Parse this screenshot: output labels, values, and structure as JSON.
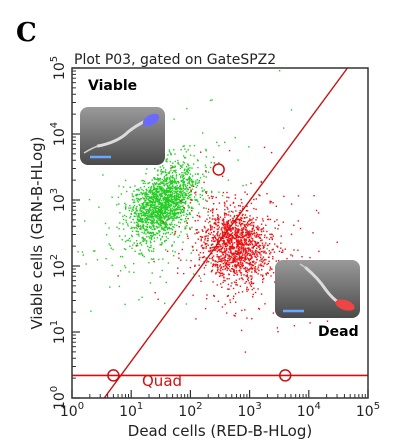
{
  "panel_letter": "C",
  "chart_data": {
    "type": "scatter",
    "title": "Plot P03, gated on GateSPZ2",
    "xlabel": "Dead cells (RED-B-HLog)",
    "ylabel": "Viable cells (GRN-B-HLog)",
    "x_scale": "log",
    "y_scale": "log",
    "xlim": [
      1,
      100000
    ],
    "ylim": [
      1,
      100000
    ],
    "x_ticks": [
      {
        "value": 1,
        "base": "10",
        "exp": "0"
      },
      {
        "value": 10,
        "base": "10",
        "exp": "1"
      },
      {
        "value": 100,
        "base": "10",
        "exp": "2"
      },
      {
        "value": 1000,
        "base": "10",
        "exp": "3"
      },
      {
        "value": 10000,
        "base": "10",
        "exp": "4"
      },
      {
        "value": 100000,
        "base": "10",
        "exp": "5"
      }
    ],
    "y_ticks": [
      {
        "value": 1,
        "base": "10",
        "exp": "0"
      },
      {
        "value": 10,
        "base": "10",
        "exp": "1"
      },
      {
        "value": 100,
        "base": "10",
        "exp": "2"
      },
      {
        "value": 1000,
        "base": "10",
        "exp": "3"
      },
      {
        "value": 10000,
        "base": "10",
        "exp": "4"
      },
      {
        "value": 100000,
        "base": "10",
        "exp": "5"
      }
    ],
    "series": [
      {
        "name": "Viable",
        "color": "#22cc22",
        "center": [
          35,
          900
        ],
        "spread_log": [
          0.28,
          0.26
        ],
        "count": 1800
      },
      {
        "name": "Dead",
        "color": "#ee1111",
        "center": [
          600,
          200
        ],
        "spread_log": [
          0.3,
          0.28
        ],
        "count": 1500
      }
    ],
    "annotations": [
      {
        "text": "Viable",
        "position": "top-left"
      },
      {
        "text": "Dead",
        "position": "bottom-right"
      },
      {
        "text": "Quad",
        "color": "#cc1111"
      }
    ],
    "quadrant": {
      "label": "Quad",
      "color": "#cc1111",
      "horizontal_line_y": 2.2,
      "diagonal_line": [
        [
          3.5,
          1
        ],
        [
          45000,
          100000
        ]
      ],
      "markers": [
        [
          5,
          2.2
        ],
        [
          300,
          2900
        ],
        [
          4000,
          2.2
        ]
      ]
    }
  }
}
